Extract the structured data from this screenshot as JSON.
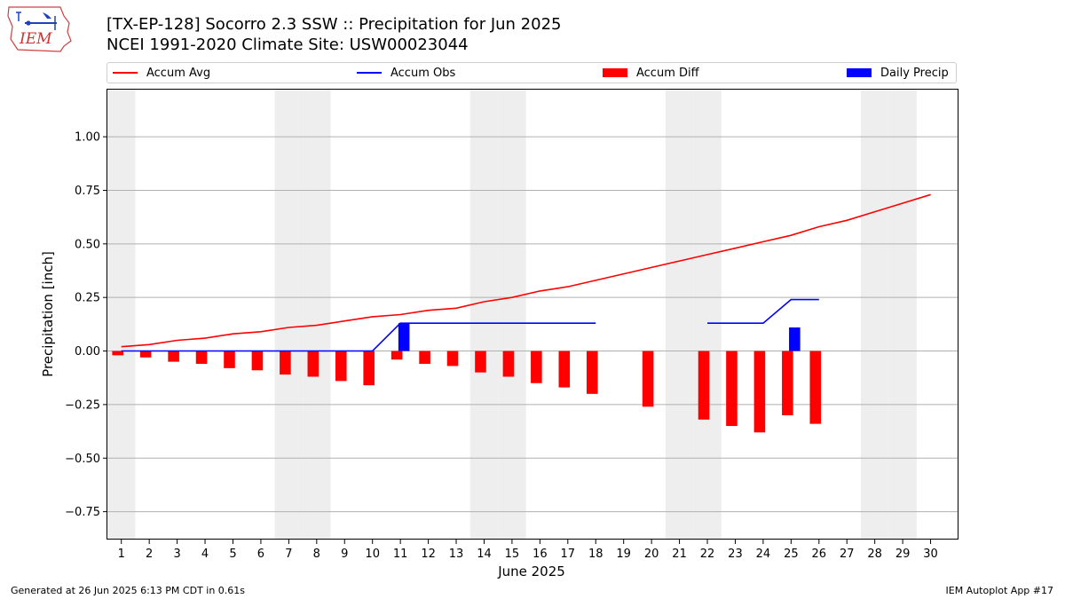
{
  "logo": {
    "text": "IEM"
  },
  "title_line1": "[TX-EP-128] Socorro 2.3 SSW :: Precipitation for Jun 2025",
  "title_line2": "NCEI 1991-2020 Climate Site: USW00023044",
  "footer_left": "Generated at 26 Jun 2025 6:13 PM CDT in 0.61s",
  "footer_right": "IEM Autoplot App #17",
  "colors": {
    "accum_avg": "#ff0000",
    "accum_obs": "#0000ff",
    "accum_diff": "#ff0000",
    "daily_precip": "#0000ff",
    "weekend_shade": "#eeeeee",
    "grid": "#b0b0b0"
  },
  "chart_data": {
    "type": "bar",
    "xlabel": "June 2025",
    "ylabel": "Precipitation [inch]",
    "ylim": [
      -0.88,
      1.22
    ],
    "xlim": [
      0.5,
      31.0
    ],
    "yticks": [
      -0.75,
      -0.5,
      -0.25,
      0.0,
      0.25,
      0.5,
      0.75,
      1.0
    ],
    "ytick_labels": [
      "−0.75",
      "−0.50",
      "−0.25",
      "0.00",
      "0.25",
      "0.50",
      "0.75",
      "1.00"
    ],
    "xticks": [
      1,
      2,
      3,
      4,
      5,
      6,
      7,
      8,
      9,
      10,
      11,
      12,
      13,
      14,
      15,
      16,
      17,
      18,
      19,
      20,
      21,
      22,
      23,
      24,
      25,
      26,
      27,
      28,
      29,
      30
    ],
    "grid": "y",
    "legend_position": "top",
    "weekend_days": [
      1,
      7,
      8,
      14,
      15,
      21,
      22,
      28,
      29
    ],
    "series": [
      {
        "name": "Accum Avg",
        "kind": "line",
        "x": [
          1,
          2,
          3,
          4,
          5,
          6,
          7,
          8,
          9,
          10,
          11,
          12,
          13,
          14,
          15,
          16,
          17,
          18,
          19,
          20,
          21,
          22,
          23,
          24,
          25,
          26,
          27,
          28,
          29,
          30
        ],
        "values": [
          0.02,
          0.03,
          0.05,
          0.06,
          0.08,
          0.09,
          0.11,
          0.12,
          0.14,
          0.16,
          0.17,
          0.19,
          0.2,
          0.23,
          0.25,
          0.28,
          0.3,
          0.33,
          0.36,
          0.39,
          0.42,
          0.45,
          0.48,
          0.51,
          0.54,
          0.58,
          0.61,
          0.65,
          0.69,
          0.73
        ]
      },
      {
        "name": "Accum Obs",
        "kind": "line",
        "x": [
          1,
          2,
          3,
          4,
          5,
          6,
          7,
          8,
          9,
          10,
          11,
          12,
          13,
          14,
          15,
          16,
          17,
          18,
          19,
          20,
          21,
          22,
          23,
          24,
          25,
          26
        ],
        "values": [
          0,
          0,
          0,
          0,
          0,
          0,
          0,
          0,
          0,
          0,
          0.13,
          0.13,
          0.13,
          0.13,
          0.13,
          0.13,
          0.13,
          0.13,
          null,
          null,
          null,
          0.13,
          0.13,
          0.13,
          0.24,
          0.24
        ]
      },
      {
        "name": "Accum Diff",
        "kind": "bar",
        "x": [
          1,
          2,
          3,
          4,
          5,
          6,
          7,
          8,
          9,
          10,
          11,
          12,
          13,
          14,
          15,
          16,
          17,
          18,
          20,
          22,
          23,
          24,
          25,
          26
        ],
        "values": [
          -0.02,
          -0.03,
          -0.05,
          -0.06,
          -0.08,
          -0.09,
          -0.11,
          -0.12,
          -0.14,
          -0.16,
          -0.04,
          -0.06,
          -0.07,
          -0.1,
          -0.12,
          -0.15,
          -0.17,
          -0.2,
          -0.26,
          -0.32,
          -0.35,
          -0.38,
          -0.3,
          -0.34
        ]
      },
      {
        "name": "Daily Precip",
        "kind": "bar",
        "x": [
          11,
          25
        ],
        "values": [
          0.13,
          0.11
        ]
      }
    ]
  }
}
